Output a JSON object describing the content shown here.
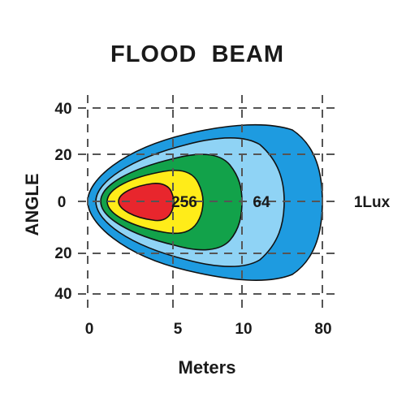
{
  "chart_data": {
    "type": "area",
    "title": "FLOOD  BEAM",
    "xlabel": "Meters",
    "ylabel": "ANGLE",
    "x_ticks": [
      "0",
      "5",
      "10",
      "80"
    ],
    "y_ticks": [
      "40",
      "20",
      "0",
      "20",
      "40"
    ],
    "grid": true,
    "contours": [
      {
        "lux": "1Lux",
        "label": "1Lux",
        "color": "#1e9be0"
      },
      {
        "lux": "64",
        "label": "64",
        "color": "#8fd3f5"
      },
      {
        "lux": "256",
        "label": "256",
        "color": "#12a24a"
      },
      {
        "lux": "",
        "label": "",
        "color": "#ffec19"
      },
      {
        "lux": "",
        "label": "",
        "color": "#e8262d"
      }
    ]
  }
}
